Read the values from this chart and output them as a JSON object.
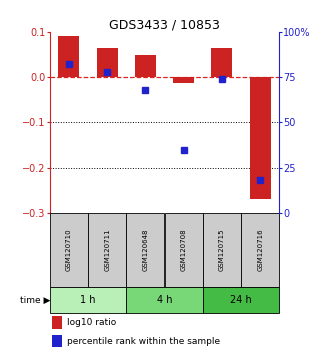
{
  "title": "GDS3433 / 10853",
  "samples": [
    "GSM120710",
    "GSM120711",
    "GSM120648",
    "GSM120708",
    "GSM120715",
    "GSM120716"
  ],
  "time_groups": [
    {
      "label": "1 h",
      "color": "#b8f0b8",
      "start": 0,
      "end": 1
    },
    {
      "label": "4 h",
      "color": "#78d878",
      "start": 2,
      "end": 3
    },
    {
      "label": "24 h",
      "color": "#44bb44",
      "start": 4,
      "end": 5
    }
  ],
  "log10_ratio": [
    0.09,
    0.065,
    0.048,
    -0.012,
    0.065,
    -0.27
  ],
  "percentile_rank_pct": [
    82,
    78,
    68,
    35,
    74,
    18
  ],
  "ylim_left": [
    -0.3,
    0.1
  ],
  "ylim_right": [
    0,
    100
  ],
  "yticks_left": [
    0.1,
    0.0,
    -0.1,
    -0.2,
    -0.3
  ],
  "yticks_right": [
    100,
    75,
    50,
    25,
    0
  ],
  "bar_color_red": "#cc2222",
  "bar_color_blue": "#2222cc",
  "zero_line_color": "#dd2222",
  "bg_color": "#ffffff",
  "sample_box_color": "#cccccc",
  "legend_red": "log10 ratio",
  "legend_blue": "percentile rank within the sample"
}
